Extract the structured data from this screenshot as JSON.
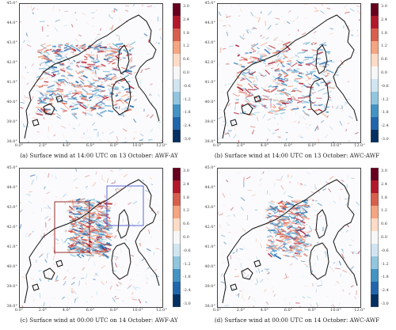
{
  "figure": {
    "colorbar": {
      "ticks": [
        "3.0",
        "2.4",
        "1.8",
        "1.2",
        "0.6",
        "0.0",
        "-0.6",
        "-1.2",
        "-1.8",
        "-2.4",
        "-3.0"
      ],
      "colors": [
        "#67001f",
        "#b2182b",
        "#d6604d",
        "#f4a582",
        "#fddbc7",
        "#f7f7f7",
        "#d1e5f0",
        "#92c5de",
        "#4393c3",
        "#2166ac",
        "#053061"
      ]
    },
    "x_ticks": [
      "0.0°",
      "2.0°",
      "4.0°",
      "6.0°",
      "8.0°",
      "10.0°",
      "12.0°"
    ],
    "y_ticks": [
      "45.0°",
      "44.0°",
      "43.0°",
      "42.0°",
      "41.0°",
      "40.0°",
      "39.0°",
      "38.0°"
    ],
    "panels": [
      {
        "caption": "(a) Surface wind at 14:00 UTC on 13 October: AWF-AY"
      },
      {
        "caption": "(b) Surface wind at 14:00 UTC on 13 October: AWC-AWF"
      },
      {
        "caption": "(c) Surface wind at 00:00 UTC on 14 October: AWF-AY"
      },
      {
        "caption": "(d) Surface wind at 00:00 UTC on 14 October: AWC-AWF"
      }
    ]
  }
}
